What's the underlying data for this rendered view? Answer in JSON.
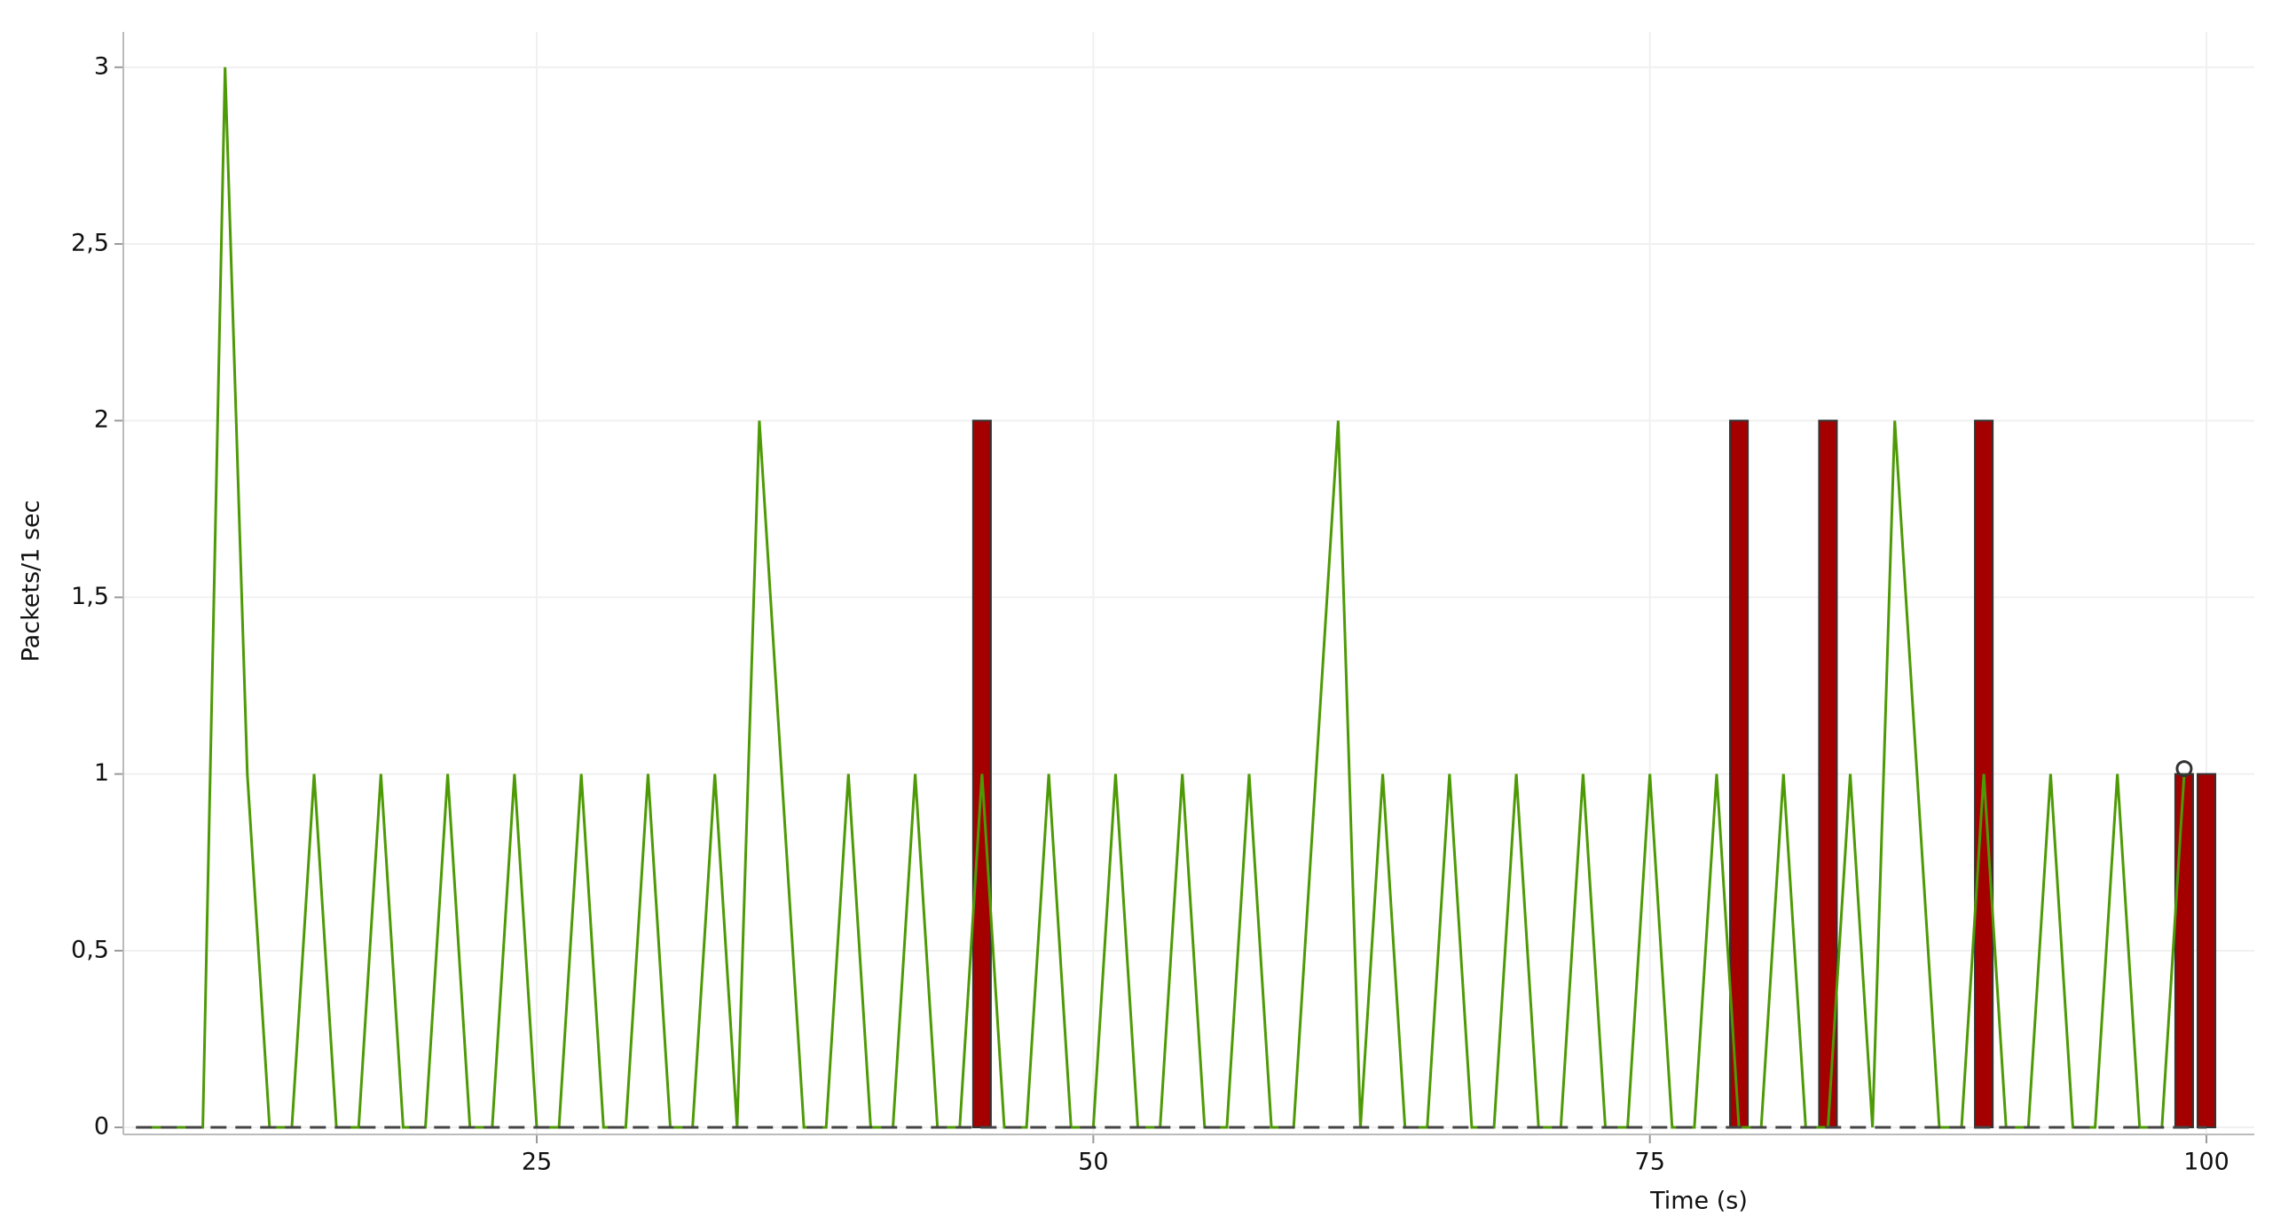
{
  "chart_data": {
    "type": "line",
    "x_label": "Time (s)",
    "y_label": "Packets/1 sec",
    "xlim": [
      6.43,
      102.15
    ],
    "ylim": [
      -0.02,
      3.1
    ],
    "xticks": [
      25,
      50,
      75,
      100
    ],
    "yticks": [
      0,
      {
        "value": 0.5,
        "label": "0,5"
      },
      1,
      {
        "value": 1.5,
        "label": "1,5"
      },
      2,
      {
        "value": 2.5,
        "label": "2,5"
      },
      3
    ],
    "grid": true,
    "series": [
      {
        "type": "line",
        "color": "#4e9a06",
        "marker_last": true,
        "x": [
          7,
          8,
          9,
          10,
          11,
          12,
          13,
          14,
          15,
          16,
          17,
          18,
          19,
          20,
          21,
          22,
          23,
          24,
          25,
          26,
          27,
          28,
          29,
          30,
          31,
          32,
          33,
          34,
          35,
          36,
          37,
          38,
          39,
          40,
          41,
          42,
          43,
          44,
          45,
          46,
          47,
          48,
          49,
          50,
          51,
          52,
          53,
          54,
          55,
          56,
          57,
          58,
          59,
          60,
          61,
          62,
          63,
          64,
          65,
          66,
          67,
          68,
          69,
          70,
          71,
          72,
          73,
          74,
          75,
          76,
          77,
          78,
          79,
          80,
          81,
          82,
          83,
          84,
          85,
          86,
          87,
          88,
          89,
          90,
          91,
          92,
          93,
          94,
          95,
          96,
          97,
          98,
          99
        ],
        "values": [
          0,
          0,
          0,
          0,
          3,
          1,
          0,
          0,
          1,
          0,
          0,
          1,
          0,
          0,
          1,
          0,
          0,
          1,
          0,
          0,
          1,
          0,
          0,
          1,
          0,
          0,
          1,
          0,
          2,
          1,
          0,
          0,
          1,
          0,
          0,
          1,
          0,
          0,
          1,
          0,
          0,
          1,
          0,
          0,
          1,
          0,
          0,
          1,
          0,
          0,
          1,
          0,
          0,
          1,
          2,
          0,
          1,
          0,
          0,
          1,
          0,
          0,
          1,
          0,
          0,
          1,
          0,
          0,
          1,
          0,
          0,
          1,
          0,
          0,
          1,
          0,
          0,
          1,
          0,
          2,
          1,
          0,
          0,
          1,
          0,
          0,
          1,
          0,
          0,
          1,
          0,
          0,
          1
        ]
      },
      {
        "type": "bar",
        "color": "#a40000",
        "x": [
          45,
          79,
          83,
          90,
          99,
          100
        ],
        "values": [
          2,
          2,
          2,
          2,
          1,
          1
        ]
      },
      {
        "type": "line",
        "color": "#444444",
        "dashed": true,
        "x": [
          7,
          100
        ],
        "values": [
          0,
          0
        ]
      }
    ]
  }
}
